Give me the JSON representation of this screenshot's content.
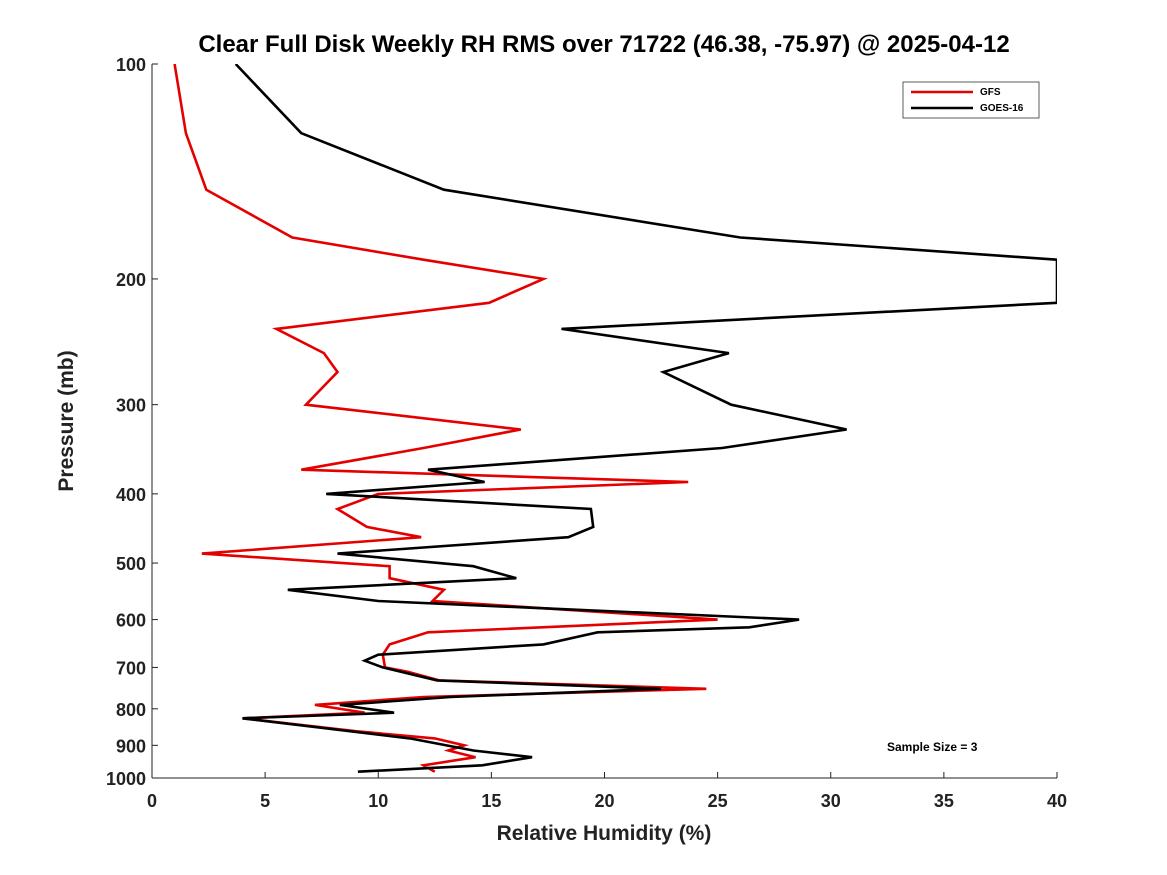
{
  "chart_data": {
    "type": "line",
    "title": "Clear Full Disk Weekly RH RMS over 71722 (46.38, -75.97) @ 2025-04-12",
    "xlabel": "Relative Humidity (%)",
    "ylabel": "Pressure (mb)",
    "xlim": [
      0,
      40
    ],
    "ylim": [
      100,
      1000
    ],
    "yscale": "log",
    "y_reversed": true,
    "xticks": [
      0,
      5,
      10,
      15,
      20,
      25,
      30,
      35,
      40
    ],
    "yticks": [
      100,
      200,
      300,
      400,
      500,
      600,
      700,
      800,
      900,
      1000
    ],
    "legend_position": "top-right",
    "annotation": "Sample Size = 3",
    "series": [
      {
        "name": "GFS",
        "color": "#e50000",
        "points": [
          [
            1.0,
            100
          ],
          [
            1.5,
            125
          ],
          [
            2.4,
            150
          ],
          [
            6.2,
            175
          ],
          [
            12.0,
            188
          ],
          [
            17.3,
            200
          ],
          [
            14.9,
            216
          ],
          [
            5.5,
            235
          ],
          [
            7.6,
            254
          ],
          [
            8.2,
            270
          ],
          [
            6.8,
            300
          ],
          [
            16.3,
            325
          ],
          [
            12.0,
            345
          ],
          [
            6.6,
            370
          ],
          [
            23.7,
            385
          ],
          [
            10.0,
            400
          ],
          [
            8.2,
            420
          ],
          [
            9.5,
            445
          ],
          [
            11.9,
            460
          ],
          [
            2.2,
            485
          ],
          [
            10.5,
            505
          ],
          [
            10.5,
            525
          ],
          [
            12.9,
            545
          ],
          [
            12.4,
            565
          ],
          [
            25.0,
            600
          ],
          [
            12.2,
            625
          ],
          [
            10.5,
            650
          ],
          [
            10.2,
            672
          ],
          [
            10.3,
            700
          ],
          [
            11.3,
            710
          ],
          [
            12.7,
            730
          ],
          [
            24.5,
            750
          ],
          [
            12.0,
            770
          ],
          [
            7.2,
            790
          ],
          [
            9.4,
            810
          ],
          [
            4.0,
            825
          ],
          [
            9.0,
            860
          ],
          [
            12.5,
            880
          ],
          [
            13.8,
            900
          ],
          [
            13.1,
            915
          ],
          [
            14.3,
            935
          ],
          [
            12.0,
            960
          ],
          [
            12.5,
            980
          ]
        ]
      },
      {
        "name": "GOES-16",
        "color": "#000000",
        "points": [
          [
            3.7,
            100
          ],
          [
            6.6,
            125
          ],
          [
            12.9,
            150
          ],
          [
            26.0,
            175
          ],
          [
            40.0,
            188
          ],
          [
            40.0,
            216
          ],
          [
            18.1,
            235
          ],
          [
            25.5,
            254
          ],
          [
            22.6,
            270
          ],
          [
            25.6,
            300
          ],
          [
            30.7,
            325
          ],
          [
            25.2,
            345
          ],
          [
            12.2,
            370
          ],
          [
            14.7,
            385
          ],
          [
            7.7,
            400
          ],
          [
            19.4,
            420
          ],
          [
            19.5,
            445
          ],
          [
            18.4,
            460
          ],
          [
            8.2,
            485
          ],
          [
            14.2,
            505
          ],
          [
            16.1,
            525
          ],
          [
            6.0,
            545
          ],
          [
            10.0,
            565
          ],
          [
            28.6,
            600
          ],
          [
            26.4,
            615
          ],
          [
            19.7,
            625
          ],
          [
            17.3,
            650
          ],
          [
            10.0,
            672
          ],
          [
            9.4,
            685
          ],
          [
            10.2,
            700
          ],
          [
            12.6,
            730
          ],
          [
            22.5,
            750
          ],
          [
            13.2,
            770
          ],
          [
            8.3,
            790
          ],
          [
            10.7,
            810
          ],
          [
            4.0,
            825
          ],
          [
            11.4,
            880
          ],
          [
            14.2,
            915
          ],
          [
            16.8,
            935
          ],
          [
            14.6,
            960
          ],
          [
            9.1,
            980
          ]
        ]
      }
    ]
  }
}
